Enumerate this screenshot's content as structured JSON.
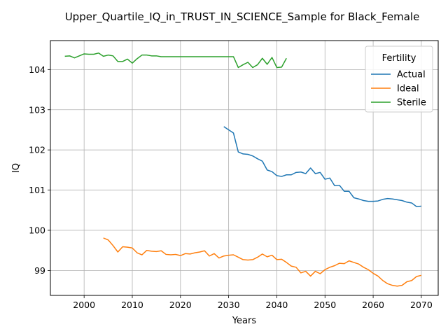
{
  "chart_data": {
    "type": "line",
    "title": "Upper_Quartile_IQ_in_TRUST_IN_SCIENCE_Sample for Black_Female",
    "xlabel": "Years",
    "ylabel": "IQ",
    "xlim": [
      1993,
      2073.5
    ],
    "ylim": [
      98.38,
      104.72
    ],
    "xticks": [
      2000,
      2010,
      2020,
      2030,
      2040,
      2050,
      2060,
      2070
    ],
    "yticks": [
      99,
      100,
      101,
      102,
      103,
      104
    ],
    "grid": true,
    "legend": {
      "title": "Fertility",
      "position": "top-right"
    },
    "series": [
      {
        "name": "Actual",
        "color": "#1f77b4",
        "x": [
          2029,
          2030,
          2031,
          2032,
          2033,
          2034,
          2035,
          2036,
          2037,
          2038,
          2039,
          2040,
          2041,
          2042,
          2043,
          2044,
          2045,
          2046,
          2047,
          2048,
          2049,
          2050,
          2051,
          2052,
          2053,
          2054,
          2055,
          2056,
          2057,
          2058,
          2059,
          2060,
          2061,
          2062,
          2063,
          2064,
          2065,
          2066,
          2067,
          2068,
          2069,
          2070
        ],
        "y": [
          102.58,
          102.5,
          102.42,
          101.95,
          101.9,
          101.89,
          101.85,
          101.78,
          101.72,
          101.5,
          101.46,
          101.36,
          101.34,
          101.38,
          101.38,
          101.44,
          101.45,
          101.41,
          101.55,
          101.41,
          101.44,
          101.27,
          101.3,
          101.11,
          101.12,
          100.97,
          100.97,
          100.81,
          100.78,
          100.74,
          100.72,
          100.72,
          100.73,
          100.77,
          100.79,
          100.78,
          100.76,
          100.74,
          100.7,
          100.68,
          100.59,
          100.6
        ]
      },
      {
        "name": "Ideal",
        "color": "#ff7f0e",
        "x": [
          2004,
          2005,
          2006,
          2007,
          2008,
          2009,
          2010,
          2011,
          2012,
          2013,
          2014,
          2015,
          2016,
          2017,
          2018,
          2019,
          2020,
          2021,
          2022,
          2023,
          2024,
          2025,
          2026,
          2027,
          2028,
          2029,
          2030,
          2031,
          2032,
          2033,
          2034,
          2035,
          2036,
          2037,
          2038,
          2039,
          2040,
          2041,
          2042,
          2043,
          2044,
          2045,
          2046,
          2047,
          2048,
          2049,
          2050,
          2051,
          2052,
          2053,
          2054,
          2055,
          2056,
          2057,
          2058,
          2059,
          2060,
          2061,
          2062,
          2063,
          2064,
          2065,
          2066,
          2067,
          2068,
          2069,
          2070
        ],
        "y": [
          99.81,
          99.76,
          99.62,
          99.46,
          99.59,
          99.58,
          99.56,
          99.44,
          99.39,
          99.5,
          99.48,
          99.47,
          99.49,
          99.4,
          99.39,
          99.4,
          99.37,
          99.42,
          99.41,
          99.44,
          99.46,
          99.49,
          99.36,
          99.42,
          99.31,
          99.36,
          99.38,
          99.39,
          99.33,
          99.27,
          99.26,
          99.27,
          99.33,
          99.41,
          99.34,
          99.38,
          99.27,
          99.28,
          99.2,
          99.11,
          99.08,
          98.94,
          98.98,
          98.86,
          98.98,
          98.92,
          99.02,
          99.08,
          99.12,
          99.18,
          99.17,
          99.24,
          99.2,
          99.16,
          99.08,
          99.02,
          98.93,
          98.86,
          98.75,
          98.67,
          98.63,
          98.61,
          98.63,
          98.72,
          98.75,
          98.85,
          98.88
        ]
      },
      {
        "name": "Sterile",
        "color": "#2ca02c",
        "x": [
          1996,
          1997,
          1998,
          1999,
          2000,
          2001,
          2002,
          2003,
          2004,
          2005,
          2006,
          2007,
          2008,
          2009,
          2010,
          2011,
          2012,
          2013,
          2014,
          2015,
          2016,
          2017,
          2018,
          2019,
          2020,
          2021,
          2022,
          2023,
          2024,
          2025,
          2026,
          2027,
          2028,
          2029,
          2030,
          2031,
          2032,
          2033,
          2034,
          2035,
          2036,
          2037,
          2038,
          2039,
          2040,
          2041,
          2042
        ],
        "y": [
          104.33,
          104.34,
          104.29,
          104.34,
          104.39,
          104.38,
          104.38,
          104.41,
          104.33,
          104.36,
          104.34,
          104.2,
          104.2,
          104.26,
          104.16,
          104.27,
          104.36,
          104.36,
          104.34,
          104.34,
          104.32,
          104.32,
          104.32,
          104.32,
          104.32,
          104.32,
          104.32,
          104.32,
          104.32,
          104.32,
          104.32,
          104.32,
          104.32,
          104.32,
          104.32,
          104.32,
          104.05,
          104.12,
          104.18,
          104.05,
          104.12,
          104.28,
          104.13,
          104.3,
          104.05,
          104.06,
          104.28
        ]
      }
    ]
  }
}
